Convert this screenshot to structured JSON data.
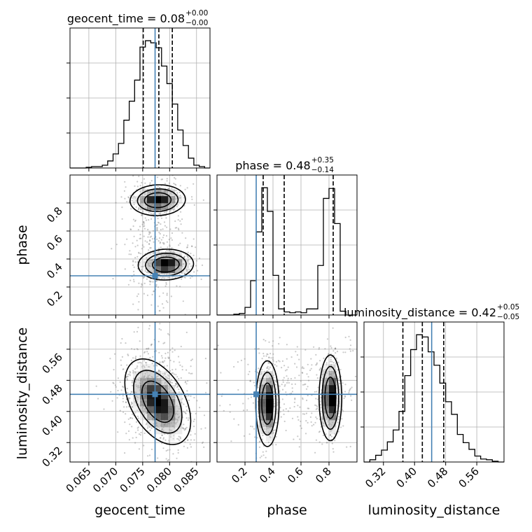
{
  "chart_data": {
    "type": "corner",
    "parameters": [
      "geocent_time",
      "phase",
      "luminosity_distance"
    ],
    "truth": {
      "geocent_time": 0.0773,
      "phase": 0.28,
      "luminosity_distance": 0.444
    },
    "marginals": [
      {
        "name": "geocent_time",
        "title": {
          "main": "geocent_time = 0.08",
          "upper": "+0.00",
          "lower": "−0.00"
        },
        "range": [
          0.0615,
          0.0875
        ],
        "quantiles": [
          0.0751,
          0.078,
          0.0805
        ],
        "bins": [
          0.0615,
          0.0625,
          0.0635,
          0.0645,
          0.0655,
          0.0665,
          0.0675,
          0.0685,
          0.0695,
          0.0705,
          0.0715,
          0.0725,
          0.0735,
          0.0745,
          0.0755,
          0.0765,
          0.0775,
          0.0785,
          0.0795,
          0.0805,
          0.0815,
          0.0825,
          0.0835,
          0.0845,
          0.0855,
          0.0865,
          0.0875
        ],
        "counts": [
          0,
          0,
          0,
          1,
          2,
          2,
          4,
          10,
          20,
          35,
          68,
          95,
          125,
          172,
          181,
          178,
          171,
          145,
          120,
          91,
          54,
          32,
          14,
          4,
          2,
          0
        ]
      },
      {
        "name": "phase",
        "title": {
          "main": "phase = 0.48",
          "upper": "+0.35",
          "lower": "−0.14"
        },
        "range": [
          0.0,
          1.0
        ],
        "quantiles": [
          0.33,
          0.48,
          0.83
        ],
        "bins": [
          0.0,
          0.04,
          0.08,
          0.12,
          0.16,
          0.2,
          0.24,
          0.28,
          0.32,
          0.36,
          0.4,
          0.44,
          0.48,
          0.52,
          0.56,
          0.6,
          0.64,
          0.68,
          0.72,
          0.76,
          0.8,
          0.84,
          0.88,
          0.92,
          0.96,
          1.0
        ],
        "counts": [
          0,
          0,
          0,
          1,
          2,
          10,
          45,
          109,
          167,
          136,
          52,
          8,
          4,
          3,
          4,
          3,
          8,
          8,
          65,
          153,
          166,
          120,
          5,
          0,
          0
        ]
      },
      {
        "name": "luminosity_distance",
        "title": {
          "main": "luminosity_distance = 0.42",
          "upper": "+0.05",
          "lower": "−0.05"
        },
        "range": [
          0.27,
          0.63
        ],
        "quantiles": [
          0.37,
          0.42,
          0.475
        ],
        "bins": [
          0.27,
          0.285,
          0.3,
          0.315,
          0.33,
          0.345,
          0.36,
          0.375,
          0.39,
          0.405,
          0.42,
          0.435,
          0.45,
          0.465,
          0.48,
          0.495,
          0.51,
          0.525,
          0.54,
          0.555,
          0.57,
          0.585,
          0.6,
          0.615,
          0.63
        ],
        "counts": [
          0,
          3,
          9,
          16,
          27,
          43,
          68,
          116,
          151,
          171,
          168,
          148,
          130,
          106,
          81,
          64,
          37,
          26,
          17,
          8,
          4,
          3,
          1,
          0
        ]
      }
    ],
    "pairs": [
      {
        "x": "geocent_time",
        "y": "phase",
        "x_range": [
          0.0615,
          0.0875
        ],
        "y_range": [
          0.0,
          1.0
        ],
        "modes": [
          {
            "cx": 0.0778,
            "cy": 0.82,
            "sx": 0.0021,
            "sy": 0.045,
            "rho": 0.05,
            "levels": [
              0.95,
              0.8,
              0.5
            ]
          },
          {
            "cx": 0.0793,
            "cy": 0.36,
            "sx": 0.0021,
            "sy": 0.045,
            "rho": 0.05,
            "levels": [
              0.95,
              0.8,
              0.5
            ]
          }
        ],
        "scatter": {
          "cx": 0.0775,
          "cy": 0.55,
          "sx": 0.003,
          "sy": 0.26
        }
      },
      {
        "x": "geocent_time",
        "y": "luminosity_distance",
        "x_range": [
          0.0615,
          0.0875
        ],
        "y_range": [
          0.27,
          0.63
        ],
        "modes": [
          {
            "cx": 0.0778,
            "cy": 0.425,
            "sx": 0.0025,
            "sy": 0.045,
            "rho": -0.45,
            "levels": [
              0.95,
              0.8,
              0.5
            ]
          }
        ],
        "scatter": {
          "cx": 0.0775,
          "cy": 0.45,
          "sx": 0.0036,
          "sy": 0.07
        }
      },
      {
        "x": "phase",
        "y": "luminosity_distance",
        "x_range": [
          0.0,
          1.0
        ],
        "y_range": [
          0.27,
          0.63
        ],
        "modes": [
          {
            "cx": 0.36,
            "cy": 0.42,
            "sx": 0.034,
            "sy": 0.045,
            "rho": 0.0,
            "levels": [
              0.95,
              0.8,
              0.5
            ]
          },
          {
            "cx": 0.81,
            "cy": 0.435,
            "sx": 0.033,
            "sy": 0.045,
            "rho": 0.0,
            "levels": [
              0.95,
              0.8,
              0.5
            ]
          }
        ],
        "scatter": {
          "cx": 0.58,
          "cy": 0.45,
          "sx": 0.24,
          "sy": 0.07
        }
      }
    ],
    "ticks": {
      "geocent_time": [
        "0.065",
        "0.070",
        "0.075",
        "0.080",
        "0.085"
      ],
      "phase": [
        "0.2",
        "0.4",
        "0.6",
        "0.8"
      ],
      "luminosity_distance": [
        "0.32",
        "0.40",
        "0.48",
        "0.56"
      ]
    },
    "tick_values": {
      "geocent_time": [
        0.065,
        0.07,
        0.075,
        0.08,
        0.085
      ],
      "phase": [
        0.2,
        0.4,
        0.6,
        0.8
      ],
      "luminosity_distance": [
        0.32,
        0.4,
        0.48,
        0.56
      ]
    },
    "xlabels": [
      "geocent_time",
      "phase",
      "luminosity_distance"
    ],
    "ylabels": [
      "",
      "phase",
      "luminosity_distance"
    ],
    "grid": true,
    "colors": {
      "truth": "#4682b4",
      "hist": "#000000",
      "quantile": "#000000",
      "grid": "#b0b0b0"
    }
  }
}
